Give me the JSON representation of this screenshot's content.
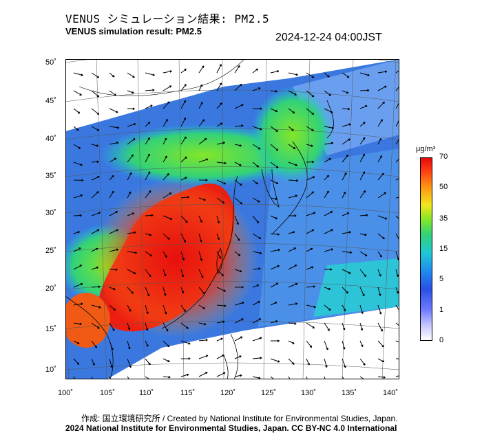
{
  "header": {
    "title_jp": "VENUS シミュレーション結果: PM2.5",
    "title_en": "VENUS simulation result: PM2.5",
    "timestamp": "2024-12-24 04:00JST"
  },
  "map": {
    "lat_labels": [
      "50˚",
      "45˚",
      "40˚",
      "35˚",
      "30˚",
      "25˚",
      "20˚",
      "15˚",
      "10˚"
    ],
    "lon_labels": [
      "100˚",
      "105˚",
      "110˚",
      "115˚",
      "120˚",
      "125˚",
      "130˚",
      "135˚",
      "140˚"
    ],
    "colors": {
      "ocean": "#ffffff",
      "low": "#5a8ce6",
      "mid": "#32d278",
      "high": "#f03c14",
      "peak": "#e60a0a"
    }
  },
  "colorbar": {
    "unit": "μg/m³",
    "ticks": [
      "70",
      "50",
      "35",
      "15",
      "5",
      "1",
      "0"
    ]
  },
  "credits": {
    "line1": "作成: 国立環境研究所 / Created by National Institute for Environmental Studies, Japan.",
    "line2": "2024 National Institute for Environmental Studies, Japan. CC BY-NC 4.0 International"
  }
}
